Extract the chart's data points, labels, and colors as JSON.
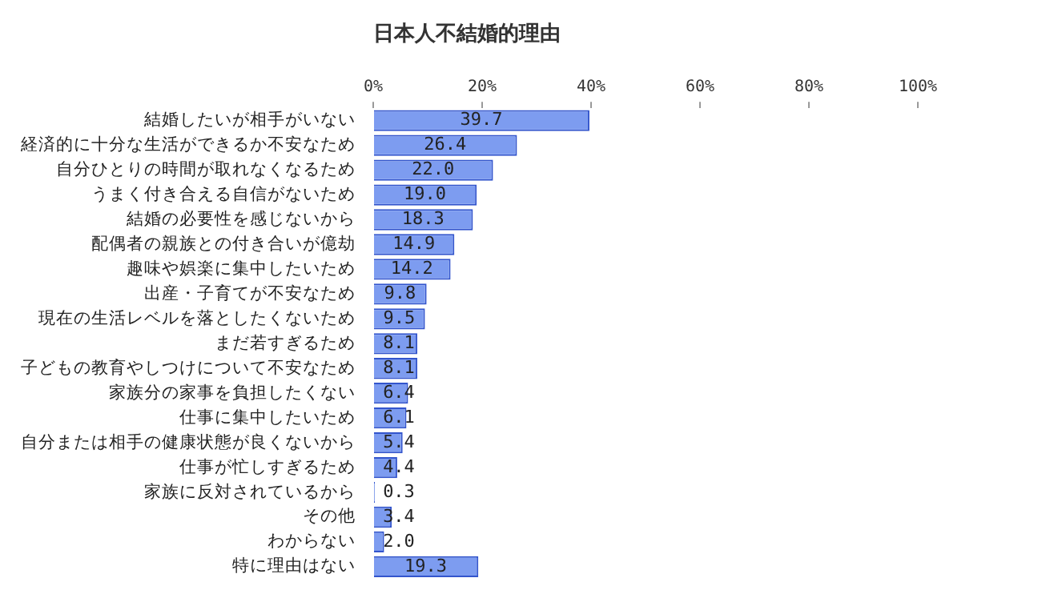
{
  "chart_data": {
    "type": "bar",
    "orientation": "horizontal",
    "title": "日本人不結婚的理由",
    "categories": [
      "結婚したいが相手がいない",
      "経済的に十分な生活ができるか不安なため",
      "自分ひとりの時間が取れなくなるため",
      "うまく付き合える自信がないため",
      "結婚の必要性を感じないから",
      "配偶者の親族との付き合いが億劫",
      "趣味や娯楽に集中したいため",
      "出産・子育てが不安なため",
      "現在の生活レベルを落としたくないため",
      "まだ若すぎるため",
      "子どもの教育やしつけについて不安なため",
      "家族分の家事を負担したくない",
      "仕事に集中したいため",
      "自分または相手の健康状態が良くないから",
      "仕事が忙しすぎるため",
      "家族に反対されているから",
      "その他",
      "わからない",
      "特に理由はない"
    ],
    "values": [
      39.7,
      26.4,
      22.0,
      19.0,
      18.3,
      14.9,
      14.2,
      9.8,
      9.5,
      8.1,
      8.1,
      6.4,
      6.1,
      5.4,
      4.4,
      0.3,
      3.4,
      2.0,
      19.3
    ],
    "value_labels": [
      "39.7",
      "26.4",
      "22.0",
      "19.0",
      "18.3",
      "14.9",
      "14.2",
      "9.8",
      "9.5",
      "8.1",
      "8.1",
      "6.4",
      "6.1",
      "5.4",
      "4.4",
      "0.3",
      "3.4",
      "2.0",
      "19.3"
    ],
    "color": "#7d9cf0",
    "xlim": [
      0,
      100
    ],
    "xticks": [
      {
        "value": 0,
        "label": "0%"
      },
      {
        "value": 20,
        "label": "20%"
      },
      {
        "value": 40,
        "label": "40%"
      },
      {
        "value": 60,
        "label": "60%"
      },
      {
        "value": 80,
        "label": "80%"
      },
      {
        "value": 100,
        "label": "100%"
      }
    ],
    "grid": false,
    "legend": false
  }
}
